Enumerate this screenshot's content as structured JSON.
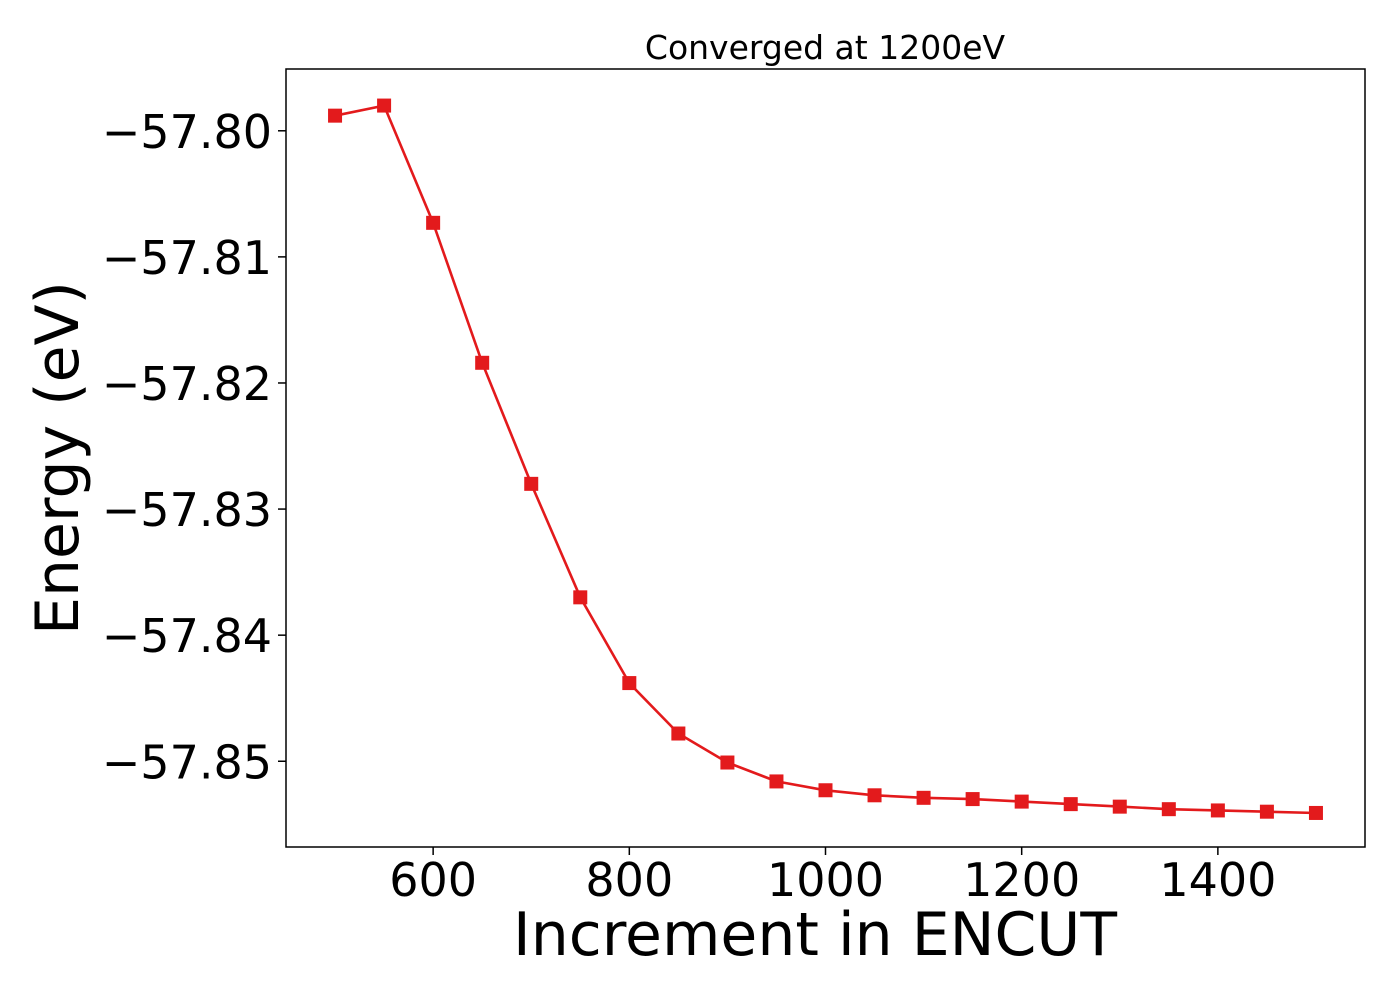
{
  "chart_data": {
    "type": "line",
    "title": "Converged at 1200eV",
    "xlabel": "Increment in ENCUT",
    "ylabel": "Energy (eV)",
    "xlim": [
      450,
      1550
    ],
    "ylim": [
      -57.8568,
      -57.7951
    ],
    "x_ticks": [
      600,
      800,
      1000,
      1200,
      1400
    ],
    "y_ticks": [
      -57.8,
      -57.81,
      -57.82,
      -57.83,
      -57.84,
      -57.85
    ],
    "x_tick_labels": [
      "600",
      "800",
      "1000",
      "1200",
      "1400"
    ],
    "y_tick_labels": [
      "−57.80",
      "−57.81",
      "−57.82",
      "−57.83",
      "−57.84",
      "−57.85"
    ],
    "grid": false,
    "series": [
      {
        "color": "#e31a1c",
        "marker": "square",
        "x": [
          500,
          550,
          600,
          650,
          700,
          750,
          800,
          850,
          900,
          950,
          1000,
          1050,
          1100,
          1150,
          1200,
          1250,
          1300,
          1350,
          1400,
          1450,
          1500
        ],
        "y": [
          -57.7988,
          -57.798,
          -57.8073,
          -57.8184,
          -57.828,
          -57.837,
          -57.8438,
          -57.8478,
          -57.8501,
          -57.8516,
          -57.8523,
          -57.8527,
          -57.8529,
          -57.853,
          -57.8532,
          -57.8534,
          -57.8536,
          -57.8538,
          -57.8539,
          -57.854,
          -57.8541
        ]
      }
    ]
  }
}
